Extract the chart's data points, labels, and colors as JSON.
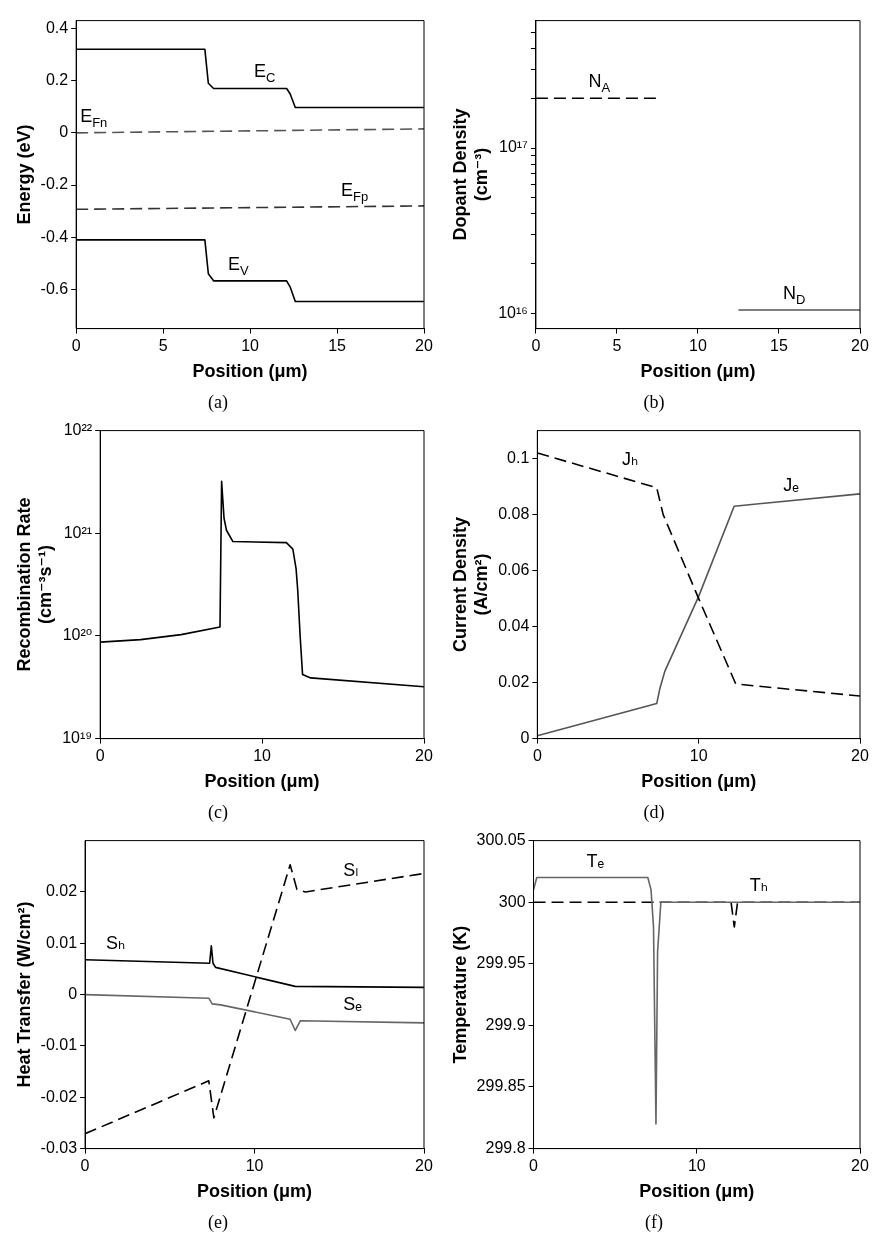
{
  "chart_data": [
    {
      "type": "line",
      "title": "(a)",
      "xlabel": "Position (μm)",
      "ylabel": "Energy (eV)",
      "xlim": [
        0,
        20
      ],
      "xticks": [
        0,
        5,
        10,
        15,
        20
      ],
      "ylim": [
        -0.75,
        0.43
      ],
      "yticks": [
        -0.6,
        -0.4,
        -0.2,
        0,
        0.2,
        0.4
      ],
      "series": [
        {
          "color": "#000000",
          "line_style": "solid",
          "x": [
            0,
            7.4,
            7.6,
            7.9,
            12.1,
            12.3,
            12.6,
            20
          ],
          "values": [
            0.32,
            0.32,
            0.19,
            0.17,
            0.17,
            0.15,
            0.097,
            0.097
          ]
        },
        {
          "color": "#555555",
          "line_style": "dashed",
          "x": [
            0,
            20
          ],
          "values": [
            0,
            0.015
          ]
        },
        {
          "color": "#333333",
          "line_style": "dashed",
          "x": [
            0,
            20
          ],
          "values": [
            -0.293,
            -0.28
          ]
        },
        {
          "color": "#000000",
          "line_style": "solid",
          "x": [
            0,
            7.4,
            7.6,
            7.9,
            12.1,
            12.3,
            12.6,
            20
          ],
          "values": [
            -0.41,
            -0.41,
            -0.54,
            -0.567,
            -0.567,
            -0.59,
            -0.646,
            -0.646
          ]
        }
      ],
      "annotations": [
        {
          "text": "E$_{C}$",
          "x": 10,
          "y": 0.17
        },
        {
          "text": "E$_{Fn}$",
          "x": 0,
          "y": 0
        },
        {
          "text": "E$_{Fp}$",
          "x": 15,
          "y": -0.283
        },
        {
          "text": "E$_{V}$",
          "x": 8.5,
          "y": -0.567
        }
      ]
    },
    {
      "type": "line",
      "title": "(b)",
      "xlabel": "Position (μm)",
      "ylabel": "Dopant Density\n(cm⁻³)",
      "log": true,
      "xlim": [
        0,
        20
      ],
      "xticks": [
        0,
        5,
        10,
        15,
        20
      ],
      "ylim": [
        8100000000000000.0,
        5.9e+17
      ],
      "yticks": [
        {
          "value": 1e+16,
          "label": "10¹⁶"
        },
        {
          "value": 2e+16,
          "label": null
        },
        {
          "value": 3e+16,
          "label": null
        },
        {
          "value": 4e+16,
          "label": null
        },
        {
          "value": 5e+16,
          "label": null
        },
        {
          "value": 6e+16,
          "label": null
        },
        {
          "value": 7e+16,
          "label": null
        },
        {
          "value": 8e+16,
          "label": null
        },
        {
          "value": 9e+16,
          "label": null
        },
        {
          "value": 1e+17,
          "label": "10¹⁷"
        },
        {
          "value": 2e+17,
          "label": null
        },
        {
          "value": 3e+17,
          "label": null
        },
        {
          "value": 4e+17,
          "label": null
        },
        {
          "value": 5e+17,
          "label": null
        }
      ],
      "series": [
        {
          "color": "#000000",
          "line_style": "dashed",
          "x": [
            0,
            7.5
          ],
          "values": [
            2e+17,
            2e+17
          ]
        },
        {
          "color": "#555555",
          "line_style": "solid",
          "x": [
            12.5,
            20
          ],
          "values": [
            1.05e+16,
            1.05e+16
          ]
        }
      ],
      "annotations": [
        {
          "text": "N$_{A}$",
          "x": 3,
          "y": 2e+17
        },
        {
          "text": "N$_{D}$",
          "x": 15,
          "y": 1.05e+16
        }
      ]
    },
    {
      "type": "line",
      "title": "(c)",
      "xlabel": "Position (μm)",
      "ylabel": "Recombination Rate\n(cm⁻³s⁻¹)",
      "log": true,
      "xlim": [
        0,
        20
      ],
      "xticks": [
        0,
        10,
        20
      ],
      "ylim": [
        1e+19,
        1e+22
      ],
      "yticks": [
        {
          "value": 1e+19,
          "label": "10¹⁹"
        },
        {
          "value": 1e+20,
          "label": "10²⁰"
        },
        {
          "value": 1e+21,
          "label": "10²¹"
        },
        {
          "value": 1e+22,
          "label": "10²²"
        }
      ],
      "series": [
        {
          "color": "#000000",
          "line_style": "solid",
          "x": [
            0,
            2.5,
            5,
            7.4,
            7.5,
            7.65,
            7.8,
            8.2,
            11.5,
            11.9,
            12.1,
            12.2,
            12.35,
            12.5,
            13,
            20
          ],
          "values": [
            8.7e+19,
            9.2e+19,
            1.03e+20,
            1.22e+20,
            3.2e+21,
            1.4e+21,
            1.07e+21,
            8.3e+20,
            8.1e+20,
            7e+20,
            4.5e+20,
            2.8e+20,
            1e+20,
            4.2e+19,
            3.9e+19,
            3.2e+19
          ]
        }
      ]
    },
    {
      "type": "line",
      "title": "(d)",
      "xlabel": "Position (μm)",
      "ylabel": "Current Density\n(A/cm²)",
      "xlim": [
        0,
        20
      ],
      "xticks": [
        0,
        10,
        20
      ],
      "ylim": [
        0,
        0.11
      ],
      "yticks": [
        0,
        0.02,
        0.04,
        0.06,
        0.08,
        0.1
      ],
      "series": [
        {
          "color": "#000000",
          "line_style": "dashed",
          "x": [
            0,
            7.4,
            7.8,
            10,
            12.3,
            20
          ],
          "values": [
            0.102,
            0.0896,
            0.08,
            0.05,
            0.0195,
            0.0152
          ]
        },
        {
          "color": "#555555",
          "line_style": "solid",
          "x": [
            0,
            7.4,
            7.6,
            7.9,
            10,
            12.2,
            20
          ],
          "values": [
            0.001,
            0.0125,
            0.018,
            0.024,
            0.0508,
            0.083,
            0.0874
          ]
        }
      ],
      "annotations": [
        {
          "text": "Jₕ",
          "x": 5,
          "y": 0.0936
        },
        {
          "text": "Jₑ",
          "x": 15,
          "y": 0.0846
        }
      ]
    },
    {
      "type": "line",
      "title": "(e)",
      "xlabel": "Position (μm)",
      "ylabel": "Heat Transfer (W/cm²)",
      "xlim": [
        0,
        20
      ],
      "xticks": [
        0,
        10,
        20
      ],
      "ylim": [
        -0.03,
        0.03
      ],
      "yticks": [
        -0.03,
        -0.02,
        -0.01,
        0,
        0.01,
        0.02
      ],
      "series": [
        {
          "color": "#000000",
          "line_style": "solid",
          "x": [
            0,
            7.35,
            7.45,
            7.55,
            7.7,
            12.4,
            20
          ],
          "values": [
            0.0068,
            0.0061,
            0.0095,
            0.0061,
            0.0053,
            0.0016,
            0.0014
          ]
        },
        {
          "color": "#666666",
          "line_style": "solid",
          "x": [
            0,
            7.3,
            7.5,
            8,
            12.1,
            12.4,
            12.7,
            20
          ],
          "values": [
            0,
            -0.0007,
            -0.0018,
            -0.002,
            -0.0048,
            -0.007,
            -0.0051,
            -0.0055
          ]
        },
        {
          "color": "#000000",
          "line_style": "dashed",
          "x": [
            0,
            7.3,
            7.6,
            12.1,
            12.5,
            13,
            20
          ],
          "values": [
            -0.0271,
            -0.0168,
            -0.024,
            0.0253,
            0.0205,
            0.02,
            0.0236
          ]
        }
      ],
      "annotations": [
        {
          "text": "Sₕ",
          "x": 1,
          "y": 0.0067
        },
        {
          "text": "Sₗ",
          "x": 15,
          "y": 0.021
        },
        {
          "text": "Sₑ",
          "x": 15,
          "y": -0.0052
        }
      ]
    },
    {
      "type": "line",
      "title": "(f)",
      "xlabel": "Position (μm)",
      "ylabel": "Temperature (K)",
      "xlim": [
        0,
        20
      ],
      "xticks": [
        0,
        10,
        20
      ],
      "ylim": [
        299.8,
        300.05
      ],
      "yticks": [
        299.8,
        299.85,
        299.9,
        299.95,
        300,
        300.05
      ],
      "series": [
        {
          "color": "#666666",
          "line_style": "solid",
          "x": [
            0,
            0.2,
            7,
            7.2,
            7.35,
            7.5,
            7.6,
            7.8,
            8.2,
            20
          ],
          "values": [
            300.01,
            300.02,
            300.02,
            300.01,
            299.98,
            299.82,
            299.96,
            300,
            300,
            300
          ]
        },
        {
          "color": "#000000",
          "line_style": "dashed",
          "x": [
            0,
            12.1,
            12.3,
            12.5,
            20
          ],
          "values": [
            300,
            300,
            299.98,
            300,
            300
          ]
        }
      ],
      "annotations": [
        {
          "text": "Tₑ",
          "x": 3,
          "y": 300.02
        },
        {
          "text": "Tₕ",
          "x": 13,
          "y": 300
        }
      ]
    }
  ]
}
